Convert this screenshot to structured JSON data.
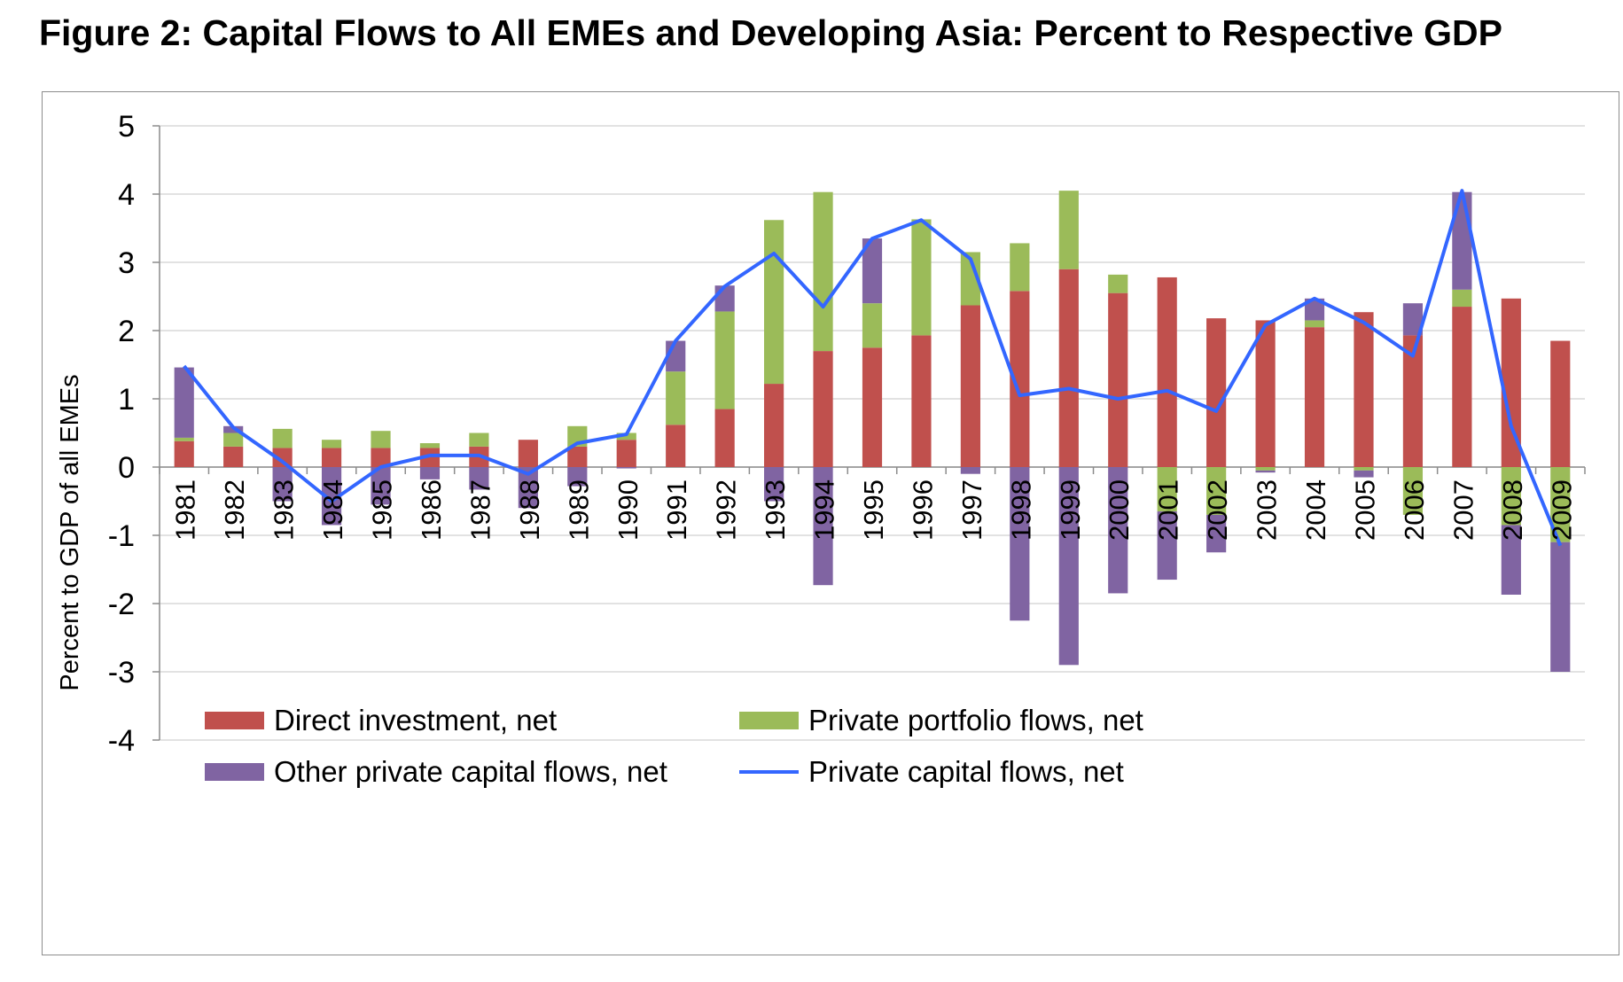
{
  "chart_data": {
    "type": "bar",
    "title": "Figure 2: Capital Flows to All EMEs and Developing Asia: Percent to Respective GDP",
    "ylabel": "Percent to GDP of all EMEs",
    "xlabel": "",
    "ylim": [
      -4,
      5
    ],
    "yticks": [
      "5",
      "4",
      "3",
      "2",
      "1",
      "0",
      "-1",
      "-2",
      "-3",
      "-4"
    ],
    "grid": true,
    "legend_position": "bottom",
    "categories": [
      "1981",
      "1982",
      "1983",
      "1984",
      "1985",
      "1986",
      "1987",
      "1988",
      "1989",
      "1990",
      "1991",
      "1992",
      "1993",
      "1994",
      "1995",
      "1996",
      "1997",
      "1998",
      "1999",
      "2000",
      "2001",
      "2002",
      "2003",
      "2004",
      "2005",
      "2006",
      "2007",
      "2008",
      "2009"
    ],
    "series": [
      {
        "name": "Direct investment, net",
        "type": "bar",
        "color": "#c0504d",
        "values": [
          0.38,
          0.3,
          0.28,
          0.28,
          0.28,
          0.28,
          0.3,
          0.4,
          0.3,
          0.4,
          0.62,
          0.85,
          1.22,
          1.7,
          1.75,
          1.93,
          2.37,
          2.58,
          2.9,
          2.55,
          2.78,
          2.18,
          2.15,
          2.05,
          2.27,
          1.93,
          2.35,
          2.47,
          1.85
        ]
      },
      {
        "name": "Private portfolio flows, net",
        "type": "bar",
        "color": "#9bbb59",
        "values": [
          0.05,
          0.2,
          0.28,
          0.12,
          0.25,
          0.07,
          0.2,
          0.0,
          0.3,
          0.1,
          0.78,
          1.43,
          2.4,
          2.33,
          0.65,
          1.7,
          0.78,
          0.7,
          1.15,
          0.27,
          -0.65,
          -0.7,
          -0.05,
          0.1,
          -0.05,
          -0.7,
          0.25,
          -0.85,
          -1.1
        ]
      },
      {
        "name": "Other private capital flows, net",
        "type": "bar",
        "color": "#8064a2",
        "values": [
          1.03,
          0.1,
          -0.5,
          -0.85,
          -0.55,
          -0.18,
          -0.33,
          -0.6,
          -0.28,
          -0.02,
          0.45,
          0.38,
          -0.5,
          -1.73,
          0.95,
          0.0,
          -0.1,
          -2.25,
          -2.9,
          -1.85,
          -1.0,
          -0.55,
          -0.03,
          0.32,
          -0.1,
          0.47,
          1.43,
          -1.02,
          -1.9
        ]
      },
      {
        "name": "Private capital flows, net",
        "type": "line",
        "color": "#3366ff",
        "values": [
          1.48,
          0.58,
          0.08,
          -0.5,
          0.0,
          0.17,
          0.17,
          -0.1,
          0.35,
          0.48,
          1.85,
          2.65,
          3.13,
          2.35,
          3.35,
          3.62,
          3.05,
          1.05,
          1.15,
          1.0,
          1.12,
          0.82,
          2.08,
          2.47,
          2.12,
          1.63,
          4.05,
          0.6,
          -1.15
        ]
      }
    ]
  }
}
